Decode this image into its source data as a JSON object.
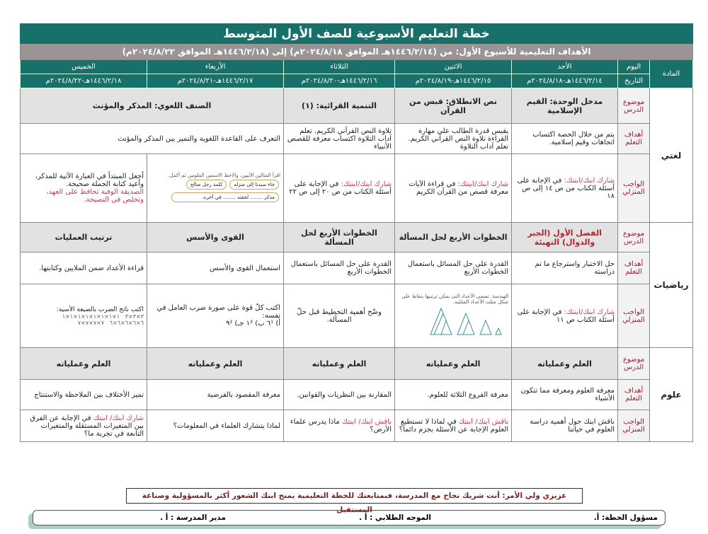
{
  "title": "خطة التعليم الأسبوعية للصف الأول المتوسط",
  "objectives_line": "الأهداف التعليمية للأسبوع الأول: من (١٤٤٦/٢/١٤هـ الموافق ٢٠٢٤/٨/١٨م) إلى (١٤٤٦/٢/١٨هـ الموافق ٢٠٢٤/٨/٢٢م)",
  "headers": {
    "subject": "المادة",
    "day": "اليوم",
    "date": "التاريخ"
  },
  "days": [
    {
      "name": "الأحد",
      "date": "١٤٤٦/٢/١٤هـ-٢٠٢٤/٨/١٨م"
    },
    {
      "name": "الاثنين",
      "date": "١٤٤٦/٢/١٥هـ-٢٠٢٤/٨/١٩م"
    },
    {
      "name": "الثلاثاء",
      "date": "١٤٤٦/٢/١٦هـ-٢٠٢٤/٨/٢٠م"
    },
    {
      "name": "الأربعاء",
      "date": "١٤٤٦/٢/١٧هـ-٢٠٢٤/٨/٢١م"
    },
    {
      "name": "الخميس",
      "date": "١٤٤٦/٢/١٨هـ-٢٠٢٤/٨/٢٢م"
    }
  ],
  "labels": {
    "topic": "موضوع الدرس",
    "goals": "أهداف التعلم",
    "homework": "الواجب المنزلي"
  },
  "arabic": {
    "subject": "لغتي",
    "topics": [
      "مدخل الوحدة: القيم الإسلامية",
      "نص الانطلاق: قبس من القرآن",
      "التنمية القرائية: (١)",
      "الصنف اللغوي: المذكر والمؤنث"
    ],
    "goals": [
      "يتم من خلال الحصة اكتساب اتجاهات وقيم إسلامية.",
      "يقيس قدرة الطالب على مهارة القراءة تلاوة النص القرآني الكريم. تعلم آداب التلاوة",
      "تلاوة النص القرآني الكريم. تعلم آداب التلاوة اكتساب معرفة للقصص الأنبياء",
      "التعرف على القاعدة اللغوية والتميز بين المذكر والمؤنث"
    ],
    "hw_prefix": "شارك ابنك/ابنتك:",
    "homework": [
      " في الإجابة على أسئلة الكتاب من ص ١٤ إلى ص ١٨",
      " في قراءة الآيات معرفة قصص من القرآن الكريم",
      " في الإجابة على أسئلة الكتاب من ص ٢٠ إلى ص ٢٢"
    ],
    "wed_image": {
      "instruction": "اقرأ المثالين الآتيين، والاحظ الاسمين الملونين ثم أكمل.",
      "box1": "جاء سيدنا إلى منزله",
      "box2": "كلمة رجل صالح",
      "box3": "مذكر ........ لحقته ........ في آخره."
    },
    "thu_hw_black": "أجعل المبتدأ في العبارة الآتية للمذكر، وأعيد كتابة الجملة صحيحة.",
    "thu_hw_red": "الصديقة الوفية تحافظ على العهد، وتخلص في النصيحة."
  },
  "math": {
    "subject": "رياضيات",
    "topics": [
      "الفصل الأول (الجبر والدوال) التهيئة",
      "الخطوات الأربع لحل المسألة",
      "الخطوات الأربع لحل المسألة",
      "القوى والأسس",
      "ترتيب العمليات"
    ],
    "goals": [
      "حل الاختبار واسترجاع ما تم دراسته",
      "القدرة على حل المسائل باستعمال الخطوات الأربع",
      "القدرة على حل المسائل باستعمال الخطوات الأربع",
      "استعمال القوى والأسس",
      "قراءة الأعداد ضمن الملايين وكتابتها."
    ],
    "hw_prefix": "شارك ابنك/ابنتك:",
    "hw_sun": " في الإجابة على أسئلة الكتاب ص ١١",
    "hw_mon_caption": "الهندسة: تسمى الأعداد التي يمكن ترتيبها بنقاط على شكل مثلث الأعداد المثلثية.",
    "hw_tue": "وضّح أهمية التخطيط قبل حلّ المسألة.",
    "hw_wed_title": "اكتب كلّ قوة على صورة ضرب العامل في نفسه:",
    "hw_wed_items": "أ) ٦¹   ب) ١²   جـ) ٩²",
    "hw_thu_title": "اكتب ناتج الضرب بالصيغة الأسية:",
    "hw_thu_items": [
      "٣×٣×٣",
      "١×١×١×١×١×١×١×١",
      "٦×٦×٦×٦×٦",
      "٧×٧×٧×٧"
    ]
  },
  "science": {
    "subject": "علوم",
    "topics": [
      "العلم وعملياته",
      "العلم وعملياته",
      "العلم وعملياته",
      "العلم وعملياته",
      "العلم وعملياته"
    ],
    "goals": [
      "معرفة العلوم ومعرفة مما تتكون الأشياء",
      "معرفة الفروع الثلاثة للعلوم.",
      "المقارنة بين النظريات والقوانين.",
      "معرفة المقصود بالفرضية",
      "تميز الأختلاف بين الملاحظة والاستنتاج"
    ],
    "hw_sun": "ناقش ابنك حول أهمية دراسة العلوم في حياتنا",
    "hw_mon_red": "ناقش ابنك/ ابنتك",
    "hw_mon": " في لماذا لا تستطيع العلوم الإجابة عن الأسئلة بجزم دائما؟",
    "hw_tue_red": "ناقش ابنك/ ابنتك",
    "hw_tue": " ماذا يدرس علماء الأرض؟",
    "hw_wed": "لماذا يتشارك العلماء في المعلومات؟",
    "hw_thu_red": "شارك ابنك/ ابنتك",
    "hw_thu": " في الإجابة عن الفرق بين المتغيرات المستقلة والمتغيرات التابعة في تجربة ما؟"
  },
  "footer": {
    "note": "عزيزي ولي الأمر: أنت شريك نجاح مع المدرسة، فبمتابعتك للخطة التعليمية يمنح ابنك الشعور أكثر بالمسؤولية وصناعة المستقبل",
    "plan_owner": "مسؤول الخطة: أ.",
    "supervisor": "الموجه الطلابي : أ .",
    "principal": "مدير المدرسة : أ ."
  },
  "colors": {
    "header": "#17706a",
    "subheader": "#9b9494",
    "label_red": "#a31b32",
    "accent_red": "#d1394f"
  }
}
